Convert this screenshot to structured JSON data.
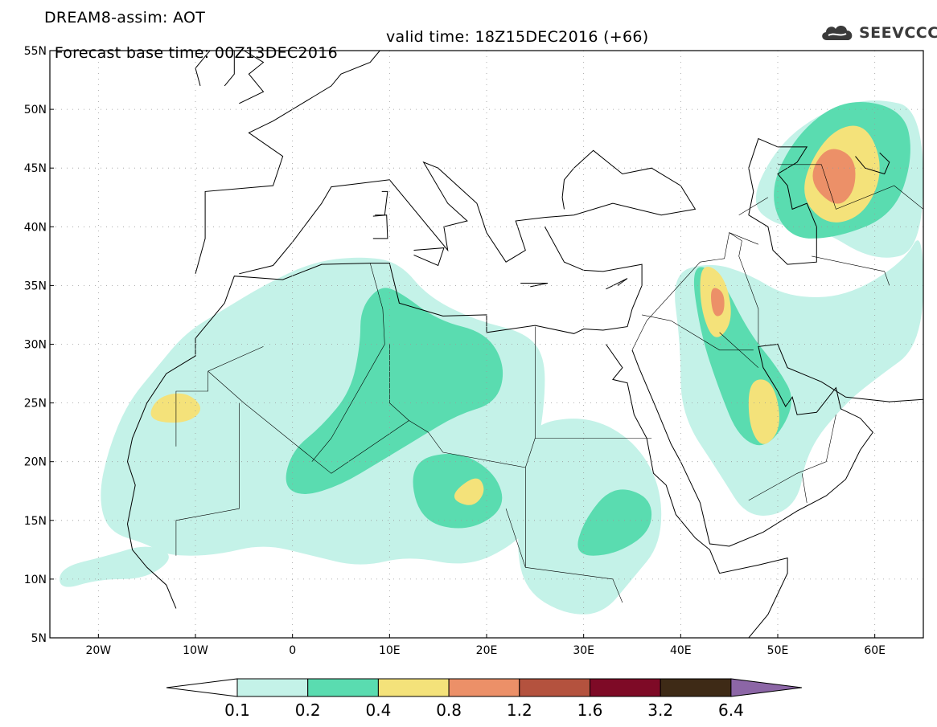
{
  "title": {
    "line1": "DREAM8-assim: AOT",
    "line2_base": "Forecast base time: 00Z13DEC2016",
    "line2_valid": "valid time: 18Z15DEC2016 (+66)"
  },
  "logo": {
    "text": "SEEVCCC",
    "icon": "cloud-icon"
  },
  "map": {
    "lon_range": [
      -25,
      65
    ],
    "lat_range": [
      5,
      55
    ],
    "lat_ticks": [
      {
        "value": 55,
        "label": "55N"
      },
      {
        "value": 50,
        "label": "50N"
      },
      {
        "value": 45,
        "label": "45N"
      },
      {
        "value": 40,
        "label": "40N"
      },
      {
        "value": 35,
        "label": "35N"
      },
      {
        "value": 30,
        "label": "30N"
      },
      {
        "value": 25,
        "label": "25N"
      },
      {
        "value": 20,
        "label": "20N"
      },
      {
        "value": 15,
        "label": "15N"
      },
      {
        "value": 10,
        "label": "10N"
      },
      {
        "value": 5,
        "label": "5N"
      }
    ],
    "lon_ticks": [
      {
        "value": -20,
        "label": "20W"
      },
      {
        "value": -10,
        "label": "10W"
      },
      {
        "value": 0,
        "label": "0"
      },
      {
        "value": 10,
        "label": "10E"
      },
      {
        "value": 20,
        "label": "20E"
      },
      {
        "value": 30,
        "label": "30E"
      },
      {
        "value": 40,
        "label": "40E"
      },
      {
        "value": 50,
        "label": "50E"
      },
      {
        "value": 60,
        "label": "60E"
      }
    ],
    "grid": "dotted"
  },
  "colorbar": {
    "labels": [
      "0.1",
      "0.2",
      "0.4",
      "0.8",
      "1.2",
      "1.6",
      "3.2",
      "6.4"
    ],
    "colors": [
      "#c4f2e8",
      "#5adcb0",
      "#f4e27a",
      "#ec9068",
      "#b4523e",
      "#7e0a26",
      "#3e2a16"
    ],
    "under_color": "#ffffff",
    "over_color": "#8c66a6"
  },
  "dust_fields": [
    {
      "level": 0,
      "name": "sahara-west",
      "outline": [
        [
          -15,
          13
        ],
        [
          -19,
          14
        ],
        [
          -20,
          17
        ],
        [
          -19,
          21
        ],
        [
          -17,
          25
        ],
        [
          -14,
          28
        ],
        [
          -11,
          31
        ],
        [
          -7,
          33
        ],
        [
          -3,
          35
        ],
        [
          2,
          37
        ],
        [
          7,
          37.5
        ],
        [
          11,
          37
        ],
        [
          14,
          34
        ],
        [
          19,
          32
        ],
        [
          24,
          31
        ],
        [
          26,
          29
        ],
        [
          26,
          25
        ],
        [
          25,
          20
        ],
        [
          26,
          16
        ],
        [
          23,
          13
        ],
        [
          18,
          11
        ],
        [
          12,
          12
        ],
        [
          7,
          11
        ],
        [
          2,
          12
        ],
        [
          -3,
          13
        ],
        [
          -8,
          12
        ],
        [
          -13,
          12
        ]
      ]
    },
    {
      "level": 0,
      "name": "sahel-southwest",
      "outline": [
        [
          -24,
          9
        ],
        [
          -20,
          10
        ],
        [
          -15,
          10
        ],
        [
          -12,
          12
        ],
        [
          -15,
          13
        ],
        [
          -19,
          12
        ],
        [
          -24,
          11
        ]
      ]
    },
    {
      "level": 0,
      "name": "sudan-east-africa",
      "outline": [
        [
          24,
          23
        ],
        [
          30,
          24
        ],
        [
          35,
          22
        ],
        [
          38,
          18
        ],
        [
          38,
          13
        ],
        [
          35,
          10
        ],
        [
          32,
          7
        ],
        [
          28,
          7
        ],
        [
          24,
          9
        ],
        [
          23,
          13
        ],
        [
          24,
          18
        ]
      ]
    },
    {
      "level": 0,
      "name": "arabia-iran",
      "outline": [
        [
          39,
          36
        ],
        [
          43,
          37
        ],
        [
          47,
          36
        ],
        [
          51,
          34
        ],
        [
          57,
          34
        ],
        [
          63,
          37
        ],
        [
          65,
          40
        ],
        [
          65,
          30
        ],
        [
          60,
          27
        ],
        [
          57,
          25
        ],
        [
          53,
          21
        ],
        [
          52,
          16
        ],
        [
          47,
          15
        ],
        [
          44,
          19
        ],
        [
          40,
          24
        ],
        [
          40,
          30
        ]
      ]
    },
    {
      "level": 0,
      "name": "central-asia",
      "outline": [
        [
          47,
          42
        ],
        [
          50,
          47
        ],
        [
          55,
          50
        ],
        [
          60,
          51
        ],
        [
          65,
          50
        ],
        [
          65,
          38
        ],
        [
          60,
          37
        ],
        [
          54,
          40
        ],
        [
          50,
          40
        ]
      ]
    },
    {
      "level": 1,
      "name": "algeria-tunisia",
      "outline": [
        [
          7,
          33
        ],
        [
          9,
          35
        ],
        [
          11,
          34.5
        ],
        [
          15,
          32
        ],
        [
          20,
          31
        ],
        [
          22,
          28
        ],
        [
          21,
          25
        ],
        [
          17,
          24
        ],
        [
          13,
          22
        ],
        [
          9,
          20
        ],
        [
          5,
          18
        ],
        [
          1,
          17
        ],
        [
          -1,
          18
        ],
        [
          0,
          21
        ],
        [
          3,
          23
        ],
        [
          6,
          26
        ],
        [
          7,
          30
        ]
      ]
    },
    {
      "level": 1,
      "name": "chad-niger",
      "outline": [
        [
          12,
          20
        ],
        [
          17,
          21
        ],
        [
          21,
          19
        ],
        [
          22,
          16
        ],
        [
          18,
          14
        ],
        [
          13,
          15
        ]
      ]
    },
    {
      "level": 1,
      "name": "sudan-core",
      "outline": [
        [
          33,
          18
        ],
        [
          37,
          17
        ],
        [
          37,
          14
        ],
        [
          33,
          12
        ],
        [
          29,
          12
        ],
        [
          30,
          15
        ]
      ]
    },
    {
      "level": 1,
      "name": "mesopotamia-gulf",
      "outline": [
        [
          41,
          37
        ],
        [
          44,
          36
        ],
        [
          47,
          31
        ],
        [
          50,
          28
        ],
        [
          52,
          25
        ],
        [
          49,
          21
        ],
        [
          46,
          22
        ],
        [
          44,
          26
        ],
        [
          42,
          31
        ]
      ]
    },
    {
      "level": 1,
      "name": "caspian-aral",
      "outline": [
        [
          49,
          43
        ],
        [
          52,
          48
        ],
        [
          57,
          51
        ],
        [
          63,
          50
        ],
        [
          64,
          46
        ],
        [
          62,
          41
        ],
        [
          56,
          39
        ],
        [
          51,
          39
        ]
      ]
    },
    {
      "level": 2,
      "name": "western-sahara",
      "outline": [
        [
          -15,
          23.5
        ],
        [
          -14,
          25.5
        ],
        [
          -11,
          26
        ],
        [
          -9,
          24.5
        ],
        [
          -11,
          23.2
        ]
      ]
    },
    {
      "level": 2,
      "name": "chad-spot",
      "outline": [
        [
          16,
          17
        ],
        [
          19,
          19
        ],
        [
          20,
          17.5
        ],
        [
          18.5,
          16
        ]
      ]
    },
    {
      "level": 2,
      "name": "iraq-spot",
      "outline": [
        [
          42,
          37
        ],
        [
          44.5,
          36
        ],
        [
          45.5,
          32
        ],
        [
          43.5,
          30
        ],
        [
          42,
          33
        ]
      ]
    },
    {
      "level": 2,
      "name": "arabia-spot",
      "outline": [
        [
          47,
          27
        ],
        [
          49.5,
          27
        ],
        [
          50.5,
          23
        ],
        [
          48.5,
          21
        ],
        [
          47,
          23
        ]
      ]
    },
    {
      "level": 2,
      "name": "caspian-spot",
      "outline": [
        [
          52,
          43
        ],
        [
          55,
          48
        ],
        [
          59,
          49
        ],
        [
          61,
          45
        ],
        [
          59,
          41
        ],
        [
          55,
          40
        ]
      ]
    },
    {
      "level": 3,
      "name": "iraq-core",
      "outline": [
        [
          43,
          35
        ],
        [
          44.5,
          34.5
        ],
        [
          44.5,
          32.5
        ],
        [
          43.3,
          32.3
        ]
      ]
    },
    {
      "level": 3,
      "name": "caspian-core",
      "outline": [
        [
          53,
          44
        ],
        [
          55,
          47
        ],
        [
          58,
          46
        ],
        [
          58,
          43
        ],
        [
          56,
          41.5
        ]
      ]
    }
  ]
}
